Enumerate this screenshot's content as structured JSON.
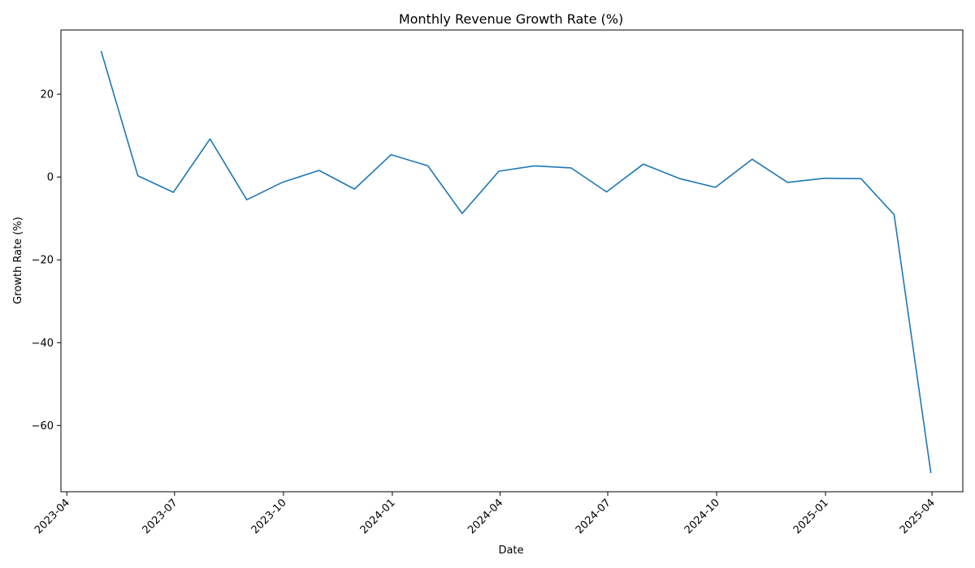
{
  "chart_data": {
    "type": "line",
    "title": "Monthly Revenue Growth Rate (%)",
    "xlabel": "Date",
    "ylabel": "Growth Rate (%)",
    "x_ticks": [
      "2023-04",
      "2023-07",
      "2023-10",
      "2024-01",
      "2024-04",
      "2024-07",
      "2024-10",
      "2025-01",
      "2025-04"
    ],
    "y_ticks": [
      20,
      0,
      -20,
      -40,
      -60
    ],
    "xlim": [
      "2023-03-27",
      "2025-04-27"
    ],
    "ylim": [
      -76,
      35.5
    ],
    "grid": false,
    "color": "#1f77b4",
    "series": [
      {
        "x": [
          "2023-04-30",
          "2023-05-31",
          "2023-06-30",
          "2023-07-31",
          "2023-08-31",
          "2023-09-30",
          "2023-10-31",
          "2023-11-30",
          "2023-12-31",
          "2024-01-31",
          "2024-02-29",
          "2024-03-31",
          "2024-04-30",
          "2024-05-31",
          "2024-06-30",
          "2024-07-31",
          "2024-08-31",
          "2024-09-30",
          "2024-10-31",
          "2024-11-30",
          "2024-12-31",
          "2025-01-31",
          "2025-02-28",
          "2025-03-31"
        ],
        "values": [
          30.4,
          0.3,
          -3.7,
          9.2,
          -5.5,
          -1.3,
          1.6,
          -2.9,
          5.4,
          2.7,
          -8.8,
          1.4,
          2.7,
          2.2,
          -3.6,
          3.1,
          -0.4,
          -2.5,
          4.3,
          -1.3,
          -0.3,
          -0.4,
          -9.1,
          -71.5
        ]
      }
    ]
  }
}
